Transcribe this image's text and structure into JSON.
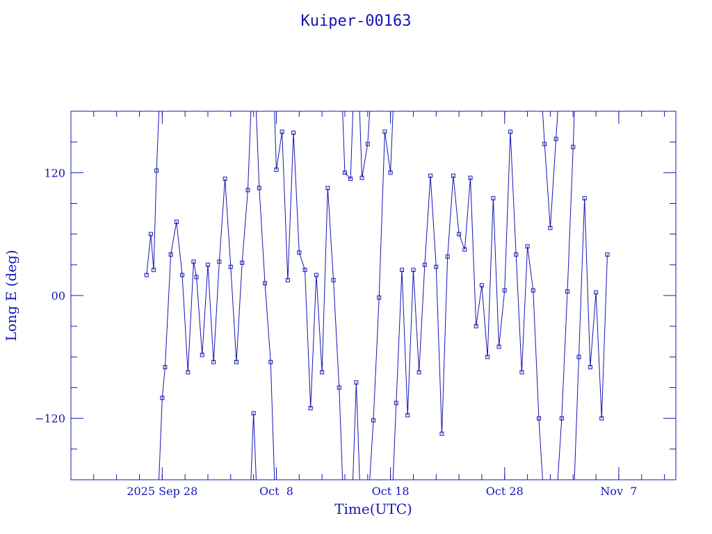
{
  "chart_data": {
    "type": "scatter",
    "title": "Kuiper-00163",
    "xlabel": "Time(UTC)",
    "ylabel": "Long E (deg)",
    "x_axis_kind": "date",
    "xlim": [
      "2025-09-20",
      "2025-11-12"
    ],
    "ylim": [
      -180,
      180
    ],
    "x_tick_labels": [
      {
        "date": "2025-09-28",
        "label": "2025 Sep 28"
      },
      {
        "date": "2025-10-08",
        "label": "Oct  8"
      },
      {
        "date": "2025-10-18",
        "label": "Oct 18"
      },
      {
        "date": "2025-10-28",
        "label": "Oct 28"
      },
      {
        "date": "2025-11-07",
        "label": "Nov  7"
      }
    ],
    "y_tick_labels": [
      {
        "value": 120,
        "label": "120"
      },
      {
        "value": 0,
        "label": "00"
      },
      {
        "value": -120,
        "label": "−120"
      }
    ],
    "y_minor_ticks": [
      -150,
      -90,
      -60,
      -30,
      30,
      60,
      90,
      150
    ],
    "grid": false,
    "colors": {
      "series": "#1414b4"
    },
    "series": [
      {
        "x": [
          "2025-09-26T15:00",
          "2025-09-27T00:00",
          "2025-09-27T06:00",
          "2025-09-27T12:00",
          "2025-09-28T00:00",
          "2025-09-28T06:00",
          "2025-09-28T18:00",
          "2025-09-29T06:00",
          "2025-09-29T18:00",
          "2025-09-30T06:00",
          "2025-09-30T18:00",
          "2025-10-01T00:00",
          "2025-10-01T12:00",
          "2025-10-02T00:00",
          "2025-10-02T12:00",
          "2025-10-03T00:00",
          "2025-10-03T12:00",
          "2025-10-04T00:00",
          "2025-10-04T12:00",
          "2025-10-05T00:00",
          "2025-10-05T12:00",
          "2025-10-06T00:00",
          "2025-10-06T12:00",
          "2025-10-07T00:00",
          "2025-10-07T12:00",
          "2025-10-08T00:00",
          "2025-10-08T12:00",
          "2025-10-09T00:00",
          "2025-10-09T12:00",
          "2025-10-10T00:00",
          "2025-10-10T12:00",
          "2025-10-11T00:00",
          "2025-10-11T12:00",
          "2025-10-12T00:00",
          "2025-10-12T12:00",
          "2025-10-13T00:00",
          "2025-10-13T12:00",
          "2025-10-14T00:00",
          "2025-10-14T12:00",
          "2025-10-15T00:00",
          "2025-10-15T12:00",
          "2025-10-16T00:00",
          "2025-10-16T12:00",
          "2025-10-17T00:00",
          "2025-10-17T12:00",
          "2025-10-18T00:00",
          "2025-10-18T12:00",
          "2025-10-19T00:00",
          "2025-10-19T12:00",
          "2025-10-20T00:00",
          "2025-10-20T12:00",
          "2025-10-21T00:00",
          "2025-10-21T12:00",
          "2025-10-22T00:00",
          "2025-10-22T12:00",
          "2025-10-23T00:00",
          "2025-10-23T12:00",
          "2025-10-24T00:00",
          "2025-10-24T12:00",
          "2025-10-25T00:00",
          "2025-10-25T12:00",
          "2025-10-26T00:00",
          "2025-10-26T12:00",
          "2025-10-27T00:00",
          "2025-10-27T12:00",
          "2025-10-28T00:00",
          "2025-10-28T12:00",
          "2025-10-29T00:00",
          "2025-10-29T12:00",
          "2025-10-30T00:00",
          "2025-10-30T12:00",
          "2025-10-31T00:00",
          "2025-10-31T12:00",
          "2025-11-01T00:00",
          "2025-11-01T12:00",
          "2025-11-02T00:00",
          "2025-11-02T12:00",
          "2025-11-03T00:00",
          "2025-11-03T12:00",
          "2025-11-04T00:00",
          "2025-11-04T12:00",
          "2025-11-05T00:00",
          "2025-11-05T12:00",
          "2025-11-06T00:00"
        ],
        "y": [
          20,
          60,
          25,
          122,
          -100,
          -70,
          40,
          72,
          20,
          -75,
          33,
          18,
          -58,
          30,
          -65,
          33,
          114,
          28,
          -65,
          32,
          103,
          -115,
          105,
          12,
          -65,
          123,
          160,
          15,
          159,
          42,
          25,
          -110,
          20,
          -75,
          105,
          15,
          -90,
          120,
          114,
          -85,
          115,
          148,
          -122,
          -2,
          160,
          120,
          -105,
          25,
          -117,
          25,
          -75,
          30,
          117,
          28,
          -135,
          38,
          117,
          60,
          45,
          115,
          -30,
          10,
          -60,
          95,
          -50,
          5,
          160,
          40,
          -75,
          48,
          5,
          -120,
          148,
          66,
          153,
          -120,
          4,
          145,
          -60,
          95,
          -70,
          3,
          -120,
          40
        ]
      }
    ]
  }
}
